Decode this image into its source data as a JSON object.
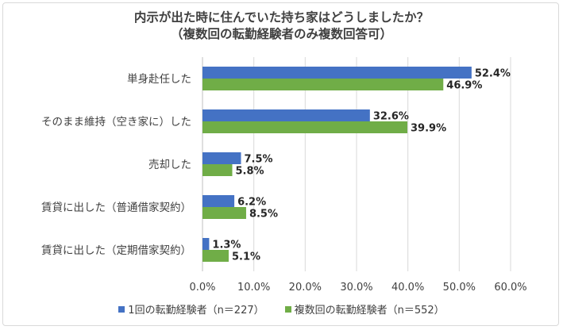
{
  "chart_data": {
    "type": "bar",
    "orientation": "horizontal",
    "title_line1": "内示が出た時に住んでいた持ち家はどうしましたか？",
    "title_line2": "（複数回の転勤経験者のみ複数回答可）",
    "categories": [
      "単身赴任した",
      "そのまま維持（空き家に）した",
      "売却した",
      "賃貸に出した（普通借家契約）",
      "賃貸に出した（定期借家契約）"
    ],
    "series": [
      {
        "name": "1回の転勤経験者（n＝227）",
        "color": "#4472c4",
        "values": [
          52.4,
          32.6,
          7.5,
          6.2,
          1.3
        ],
        "labels": [
          "52.4%",
          "32.6%",
          "7.5%",
          "6.2%",
          "1.3%"
        ]
      },
      {
        "name": "複数回の転勤経験者（n＝552）",
        "color": "#70ad47",
        "values": [
          46.9,
          39.9,
          5.8,
          8.5,
          5.1
        ],
        "labels": [
          "46.9%",
          "39.9%",
          "5.8%",
          "8.5%",
          "5.1%"
        ]
      }
    ],
    "xlim": [
      0,
      60
    ],
    "xticks": [
      0,
      10,
      20,
      30,
      40,
      50,
      60
    ],
    "xtick_labels": [
      "0.0%",
      "10.0%",
      "20.0%",
      "30.0%",
      "40.0%",
      "50.0%",
      "60.0%"
    ],
    "gridlines": true,
    "legend_position": "bottom"
  }
}
